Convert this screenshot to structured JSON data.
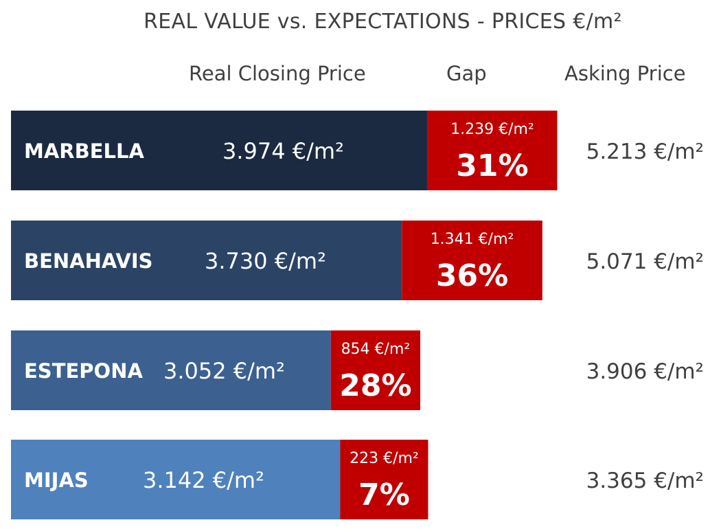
{
  "chart_data": {
    "type": "bar",
    "title": "REAL VALUE vs. EXPECTATIONS - PRICES €/m²",
    "column_headers": {
      "real": "Real Closing Price",
      "gap": "Gap",
      "asking": "Asking Price"
    },
    "categories": [
      "MARBELLA",
      "BENAHAVIS",
      "ESTEPONA",
      "MIJAS"
    ],
    "series": [
      {
        "name": "Real Closing Price",
        "values": [
          3974,
          3730,
          3052,
          3142
        ],
        "labels": [
          "3.974 €/m²",
          "3.730 €/m²",
          "3.052 €/m²",
          "3.142 €/m²"
        ]
      },
      {
        "name": "Gap",
        "values": [
          1239,
          1341,
          854,
          223
        ],
        "labels": [
          "1.239 €/m²",
          "1.341 €/m²",
          "854 €/m²",
          "223 €/m²"
        ],
        "percent_labels": [
          "31%",
          "36%",
          "28%",
          "7%"
        ]
      },
      {
        "name": "Asking Price",
        "values": [
          5213,
          5071,
          3906,
          3365
        ],
        "labels": [
          "5.213 €/m²",
          "5.071 €/m²",
          "3.906 €/m²",
          "3.365 €/m²"
        ]
      }
    ],
    "bar_colors": [
      "#1b2a41",
      "#2b4466",
      "#3c6190",
      "#4f81bd"
    ],
    "gap_color": "#c00000",
    "grid": false,
    "legend": "none"
  }
}
